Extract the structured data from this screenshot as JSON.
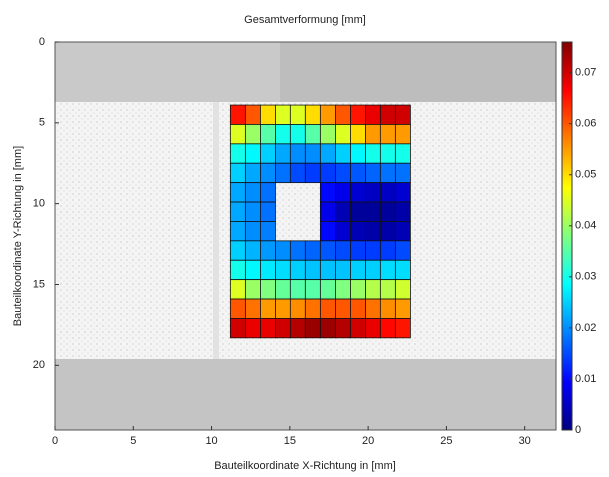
{
  "chart_data": {
    "type": "heatmap",
    "title": "Gesamtverformung [mm]",
    "x_label": "Bauteilkoordinate X-Richtung in [mm]",
    "y_label": "Bauteilkoordinate Y-Richtung in [mm]",
    "xlim": [
      0,
      32
    ],
    "ylim": [
      0,
      24
    ],
    "y_inverted": true,
    "xticks": [
      0,
      5,
      10,
      15,
      20,
      25,
      30
    ],
    "yticks": [
      0,
      5,
      10,
      15,
      20
    ],
    "clim": [
      0,
      0.076
    ],
    "cticks": [
      0,
      0.01,
      0.02,
      0.03,
      0.04,
      0.05,
      0.06,
      0.07
    ],
    "colormap": "jet",
    "x": [
      11.68,
      12.64,
      13.6,
      14.56,
      15.51,
      16.47,
      17.43,
      18.39,
      19.35,
      20.31,
      21.26,
      22.22
    ],
    "y": [
      4.5,
      5.7,
      6.9,
      8.1,
      9.3,
      10.5,
      11.7,
      12.9,
      14.1,
      15.3,
      16.5,
      17.7
    ],
    "z": [
      [
        0.065,
        0.06,
        0.05,
        0.045,
        0.045,
        0.05,
        0.055,
        0.06,
        0.065,
        0.068,
        0.07,
        0.07
      ],
      [
        0.045,
        0.04,
        0.035,
        0.03,
        0.03,
        0.035,
        0.04,
        0.045,
        0.05,
        0.055,
        0.055,
        0.055
      ],
      [
        0.03,
        0.028,
        0.025,
        0.022,
        0.02,
        0.02,
        0.022,
        0.025,
        0.028,
        0.03,
        0.03,
        0.03
      ],
      [
        0.025,
        0.022,
        0.02,
        0.018,
        0.015,
        0.014,
        0.014,
        0.015,
        0.016,
        0.017,
        0.018,
        0.018
      ],
      [
        0.022,
        0.02,
        0.018,
        null,
        null,
        null,
        0.01,
        0.008,
        0.006,
        0.005,
        0.005,
        0.006
      ],
      [
        0.022,
        0.02,
        0.018,
        null,
        null,
        null,
        0.008,
        0.004,
        0.002,
        0.002,
        0.002,
        0.003
      ],
      [
        0.022,
        0.02,
        0.019,
        null,
        null,
        null,
        0.01,
        0.006,
        0.004,
        0.003,
        0.003,
        0.004
      ],
      [
        0.025,
        0.023,
        0.021,
        0.02,
        0.018,
        0.017,
        0.016,
        0.015,
        0.014,
        0.014,
        0.014,
        0.015
      ],
      [
        0.03,
        0.028,
        0.027,
        0.026,
        0.025,
        0.024,
        0.024,
        0.024,
        0.025,
        0.025,
        0.026,
        0.026
      ],
      [
        0.045,
        0.04,
        0.038,
        0.036,
        0.035,
        0.035,
        0.036,
        0.038,
        0.04,
        0.042,
        0.042,
        0.044
      ],
      [
        0.06,
        0.058,
        0.055,
        0.055,
        0.056,
        0.058,
        0.06,
        0.06,
        0.06,
        0.058,
        0.056,
        0.055
      ],
      [
        0.07,
        0.068,
        0.068,
        0.07,
        0.072,
        0.074,
        0.074,
        0.072,
        0.07,
        0.068,
        0.066,
        0.065
      ]
    ]
  }
}
